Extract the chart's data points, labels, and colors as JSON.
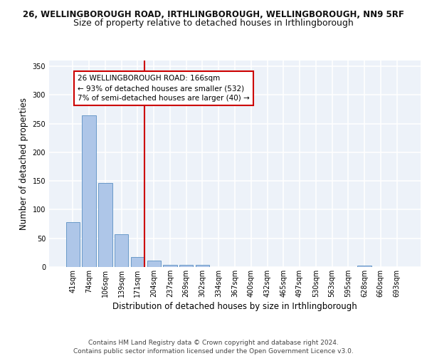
{
  "title1": "26, WELLINGBOROUGH ROAD, IRTHLINGBOROUGH, WELLINGBOROUGH, NN9 5RF",
  "title2": "Size of property relative to detached houses in Irthlingborough",
  "xlabel": "Distribution of detached houses by size in Irthlingborough",
  "ylabel": "Number of detached properties",
  "categories": [
    "41sqm",
    "74sqm",
    "106sqm",
    "139sqm",
    "171sqm",
    "204sqm",
    "237sqm",
    "269sqm",
    "302sqm",
    "334sqm",
    "367sqm",
    "400sqm",
    "432sqm",
    "465sqm",
    "497sqm",
    "530sqm",
    "563sqm",
    "595sqm",
    "628sqm",
    "660sqm",
    "693sqm"
  ],
  "values": [
    78,
    265,
    146,
    57,
    18,
    11,
    4,
    4,
    4,
    0,
    0,
    0,
    0,
    0,
    0,
    0,
    0,
    0,
    3,
    0,
    0
  ],
  "bar_color": "#aec6e8",
  "bar_edge_color": "#5a8fc2",
  "vline_color": "#cc0000",
  "annotation_lines": [
    "26 WELLINGBOROUGH ROAD: 166sqm",
    "← 93% of detached houses are smaller (532)",
    "7% of semi-detached houses are larger (40) →"
  ],
  "annotation_box_color": "#cc0000",
  "ylim": [
    0,
    360
  ],
  "yticks": [
    0,
    50,
    100,
    150,
    200,
    250,
    300,
    350
  ],
  "footer": "Contains HM Land Registry data © Crown copyright and database right 2024.\nContains public sector information licensed under the Open Government Licence v3.0.",
  "bg_color": "#edf2f9",
  "grid_color": "#ffffff",
  "title1_fontsize": 8.5,
  "title2_fontsize": 9,
  "xlabel_fontsize": 8.5,
  "ylabel_fontsize": 8.5,
  "footer_fontsize": 6.5,
  "tick_fontsize": 7,
  "ann_fontsize": 7.5
}
